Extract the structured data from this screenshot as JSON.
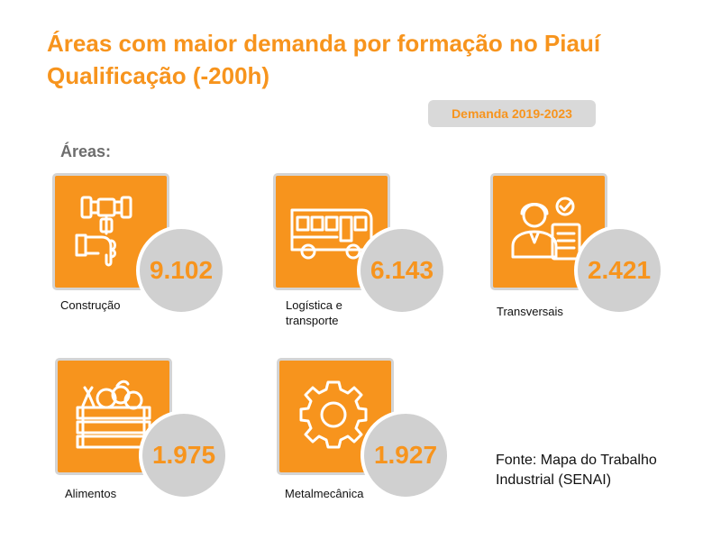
{
  "header": {
    "title_line1": "Áreas com maior demanda por formação no Piauí",
    "title_line2": "Qualificação (-200h)",
    "badge": "Demanda 2019-2023",
    "areas_label": "Áreas:"
  },
  "areas": [
    {
      "label": "Construção",
      "value": "9.102",
      "icon": "hammer-hand-icon"
    },
    {
      "label": "Logística e transporte",
      "value": "6.143",
      "icon": "bus-icon"
    },
    {
      "label": "Transversais",
      "value": "2.421",
      "icon": "worker-checklist-icon"
    },
    {
      "label": "Alimentos",
      "value": "1.975",
      "icon": "vegetable-crate-icon"
    },
    {
      "label": "Metalmecânica",
      "value": "1.927",
      "icon": "gear-icon"
    }
  ],
  "footer": {
    "source": "Fonte: Mapa do Trabalho Industrial (SENAI)"
  },
  "colors": {
    "accent": "#f7941d",
    "circle": "#d0d0d0",
    "badge_bg": "#d9d9d9"
  }
}
